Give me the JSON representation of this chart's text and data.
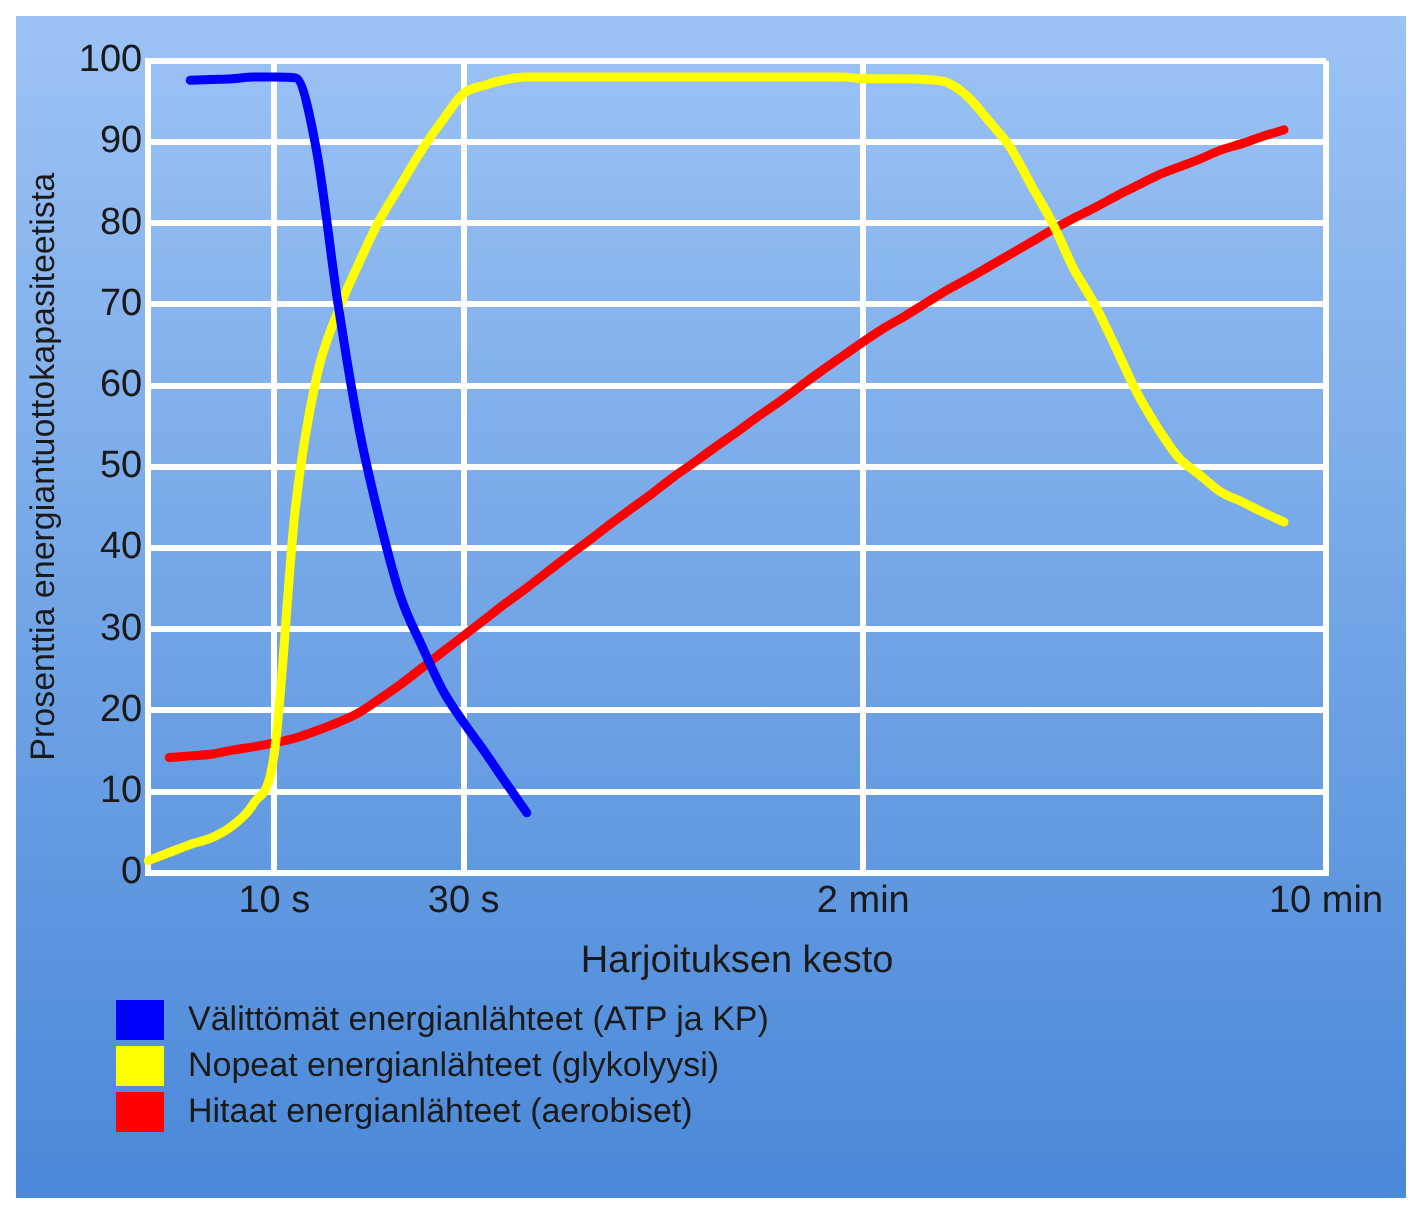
{
  "chart_data": {
    "type": "line",
    "xlabel": "Harjoituksen kesto",
    "ylabel": "Prosenttia energiantuottokapasiteetista",
    "categories": [
      null,
      null,
      null,
      null,
      null,
      null,
      "10 s",
      null,
      null,
      null,
      null,
      null,
      null,
      null,
      null,
      "30 s",
      null,
      null,
      null,
      null,
      null,
      null,
      null,
      null,
      null,
      null,
      null,
      null,
      null,
      null,
      null,
      null,
      null,
      null,
      "2 min",
      null,
      null,
      null,
      null,
      null,
      null,
      null,
      null,
      null,
      null,
      null,
      null,
      null,
      null,
      null,
      null,
      null,
      null,
      null,
      null,
      null,
      "10 min"
    ],
    "ylim": [
      0,
      100
    ],
    "yticks": [
      0,
      10,
      20,
      30,
      40,
      50,
      60,
      70,
      80,
      90,
      100
    ],
    "grid": true,
    "legend": "bottom left",
    "line_style": "solid",
    "series": [
      {
        "name": "Välittömät energianlähteet (ATP ja KP)",
        "color": "#0000ff",
        "values": [
          null,
          null,
          97.6,
          97.7,
          97.8,
          98,
          98,
          97.9,
          89,
          70.5,
          55,
          43.5,
          34,
          28,
          22.5,
          18.5,
          14.9,
          11.1,
          7.4,
          null,
          null,
          null,
          null,
          null,
          null,
          null,
          null,
          null,
          null,
          null,
          null,
          null,
          null,
          null,
          null,
          null,
          null,
          null,
          null,
          null,
          null,
          null,
          null,
          null,
          null,
          null,
          null,
          null,
          null,
          null,
          null,
          null,
          null,
          null,
          null,
          null,
          null
        ]
      },
      {
        "name": "Nopeat energianlähteet (glykolyysi)",
        "color": "#ffff00",
        "values": [
          1.5,
          2.5,
          3.5,
          4.3,
          5.8,
          8.5,
          14.8,
          45,
          61,
          69,
          75,
          80.4,
          84.7,
          89,
          92.7,
          96,
          97,
          97.7,
          98,
          98,
          98,
          98,
          98,
          98,
          98,
          98,
          98,
          98,
          98,
          98,
          98,
          98,
          98,
          98,
          97.8,
          97.8,
          97.8,
          97.7,
          97.3,
          95.5,
          92.5,
          89.3,
          84.6,
          80,
          74.4,
          70,
          64.7,
          59.2,
          54.8,
          51.1,
          49,
          46.9,
          45.7,
          44.4,
          43.2,
          null,
          null
        ]
      },
      {
        "name": "Hitaat energianlähteet (aerobiset)",
        "color": "#ff0000",
        "values": [
          null,
          14.2,
          14.4,
          14.6,
          15.1,
          15.5,
          16,
          16.6,
          17.5,
          18.5,
          19.7,
          21.4,
          23.2,
          25.2,
          27.2,
          29.2,
          31.2,
          33.2,
          35.1,
          37.1,
          39.1,
          41,
          43,
          44.9,
          46.8,
          48.8,
          50.6,
          52.5,
          54.3,
          56.2,
          58,
          59.9,
          61.8,
          63.6,
          65.4,
          67.1,
          68.6,
          70.2,
          71.8,
          73.2,
          74.7,
          76.2,
          77.7,
          79.2,
          80.6,
          81.9,
          83.3,
          84.6,
          85.9,
          86.9,
          87.9,
          89,
          89.8,
          90.7,
          91.5,
          null,
          null
        ]
      }
    ]
  }
}
